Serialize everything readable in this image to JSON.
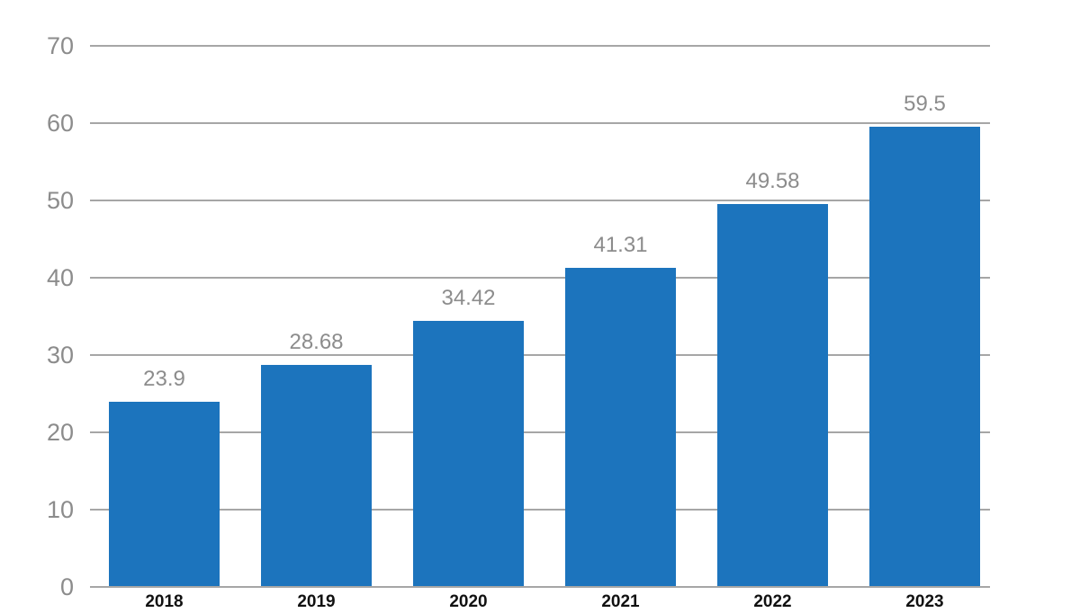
{
  "chart_data": {
    "type": "bar",
    "title": "",
    "xlabel": "",
    "ylabel": "",
    "categories": [
      "2018",
      "2019",
      "2020",
      "2021",
      "2022",
      "2023"
    ],
    "values": [
      23.9,
      28.68,
      34.42,
      41.31,
      49.58,
      59.5
    ],
    "value_labels": [
      "23.9",
      "28.68",
      "34.42",
      "41.31",
      "49.58",
      "59.5"
    ],
    "ylim": [
      0,
      70
    ],
    "yticks": [
      0,
      10,
      20,
      30,
      40,
      50,
      60,
      70
    ],
    "grid": "horizontal",
    "legend": "none",
    "colors": {
      "bar": "#1c74bd",
      "gridline": "#a6a6a6",
      "axis_tick_label": "#8c8c8c",
      "value_label": "#8c8c8c",
      "category_label": "#111111",
      "background": "#ffffff"
    }
  }
}
